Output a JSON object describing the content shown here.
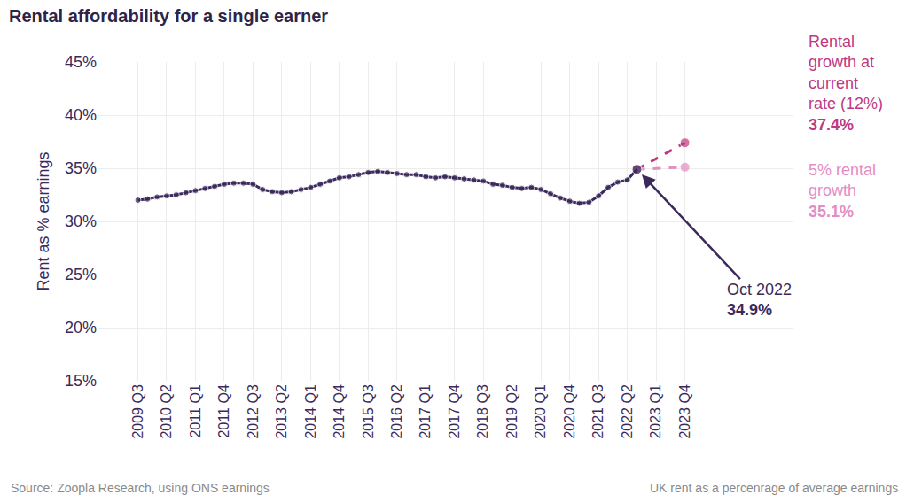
{
  "chart_data": {
    "type": "line",
    "title": "Rental affordability for a single earner",
    "y_label": "Rent as % earnings",
    "source": "Source: Zoopla Research, using ONS earnings",
    "note": "UK rent as a percenrage of average earnings",
    "categories": [
      "2009 Q3",
      null,
      null,
      "2010 Q2",
      null,
      null,
      "2011 Q1",
      null,
      null,
      "2011 Q4",
      null,
      null,
      "2012 Q3",
      null,
      null,
      "2013 Q2",
      null,
      null,
      "2014 Q1",
      null,
      null,
      "2014 Q4",
      null,
      null,
      "2015 Q3",
      null,
      null,
      "2016 Q2",
      null,
      null,
      "2017 Q1",
      null,
      null,
      "2017 Q4",
      null,
      null,
      "2018 Q3",
      null,
      null,
      "2019 Q2",
      null,
      null,
      "2020 Q1",
      null,
      null,
      "2020 Q4",
      null,
      null,
      "2021 Q3",
      null,
      null,
      "2022 Q2",
      null,
      null,
      "2023 Q1",
      null,
      null,
      "2023 Q4"
    ],
    "series": [
      {
        "name": "Rental growth at current rate (12%)",
        "color": "#c0397f",
        "line_style": "dashed",
        "marker": "circle",
        "values": [
          null,
          null,
          null,
          null,
          null,
          null,
          null,
          null,
          null,
          null,
          null,
          null,
          null,
          null,
          null,
          null,
          null,
          null,
          null,
          null,
          null,
          null,
          null,
          null,
          null,
          null,
          null,
          null,
          null,
          null,
          null,
          null,
          null,
          null,
          null,
          null,
          null,
          null,
          null,
          null,
          null,
          null,
          null,
          null,
          null,
          null,
          null,
          null,
          null,
          null,
          null,
          null,
          34.9,
          null,
          null,
          null,
          null,
          37.4
        ],
        "annotation": {
          "text": "Rental growth at current rate (12%)",
          "value_label": "37.4%"
        }
      },
      {
        "name": "5% rental growth",
        "color": "#e48dc4",
        "line_style": "dashed",
        "marker": "circle",
        "values": [
          null,
          null,
          null,
          null,
          null,
          null,
          null,
          null,
          null,
          null,
          null,
          null,
          null,
          null,
          null,
          null,
          null,
          null,
          null,
          null,
          null,
          null,
          null,
          null,
          null,
          null,
          null,
          null,
          null,
          null,
          null,
          null,
          null,
          null,
          null,
          null,
          null,
          null,
          null,
          null,
          null,
          null,
          null,
          null,
          null,
          null,
          null,
          null,
          null,
          null,
          null,
          null,
          34.9,
          null,
          null,
          null,
          null,
          35.1
        ],
        "annotation": {
          "text": "5% rental growth",
          "value_label": "35.1%"
        }
      },
      {
        "color": "#3a2a5c",
        "line_style": "solid",
        "marker": "circle",
        "values": [
          32.0,
          32.1,
          32.3,
          32.4,
          32.5,
          32.7,
          32.9,
          33.1,
          33.3,
          33.5,
          33.6,
          33.6,
          33.5,
          33.0,
          32.8,
          32.7,
          32.8,
          33.0,
          33.2,
          33.5,
          33.8,
          34.1,
          34.2,
          34.4,
          34.6,
          34.7,
          34.6,
          34.5,
          34.4,
          34.4,
          34.2,
          34.1,
          34.2,
          34.1,
          34.0,
          33.9,
          33.8,
          33.5,
          33.4,
          33.2,
          33.1,
          33.2,
          33.0,
          32.6,
          32.2,
          31.9,
          31.7,
          31.8,
          32.4,
          33.2,
          33.7,
          33.9,
          34.9,
          null,
          null,
          null,
          null,
          null
        ],
        "annotation": {
          "text": "Oct 2022",
          "value_label": "34.9%"
        }
      }
    ],
    "ylim": [
      15,
      45
    ],
    "yticks": [
      {
        "value": 15,
        "label": "15%"
      },
      {
        "value": 20,
        "label": "20%"
      },
      {
        "value": 25,
        "label": "25%"
      },
      {
        "value": 30,
        "label": "30%"
      },
      {
        "value": 35,
        "label": "35%"
      },
      {
        "value": 40,
        "label": "40%"
      },
      {
        "value": 45,
        "label": "45%"
      }
    ],
    "grid": true
  }
}
